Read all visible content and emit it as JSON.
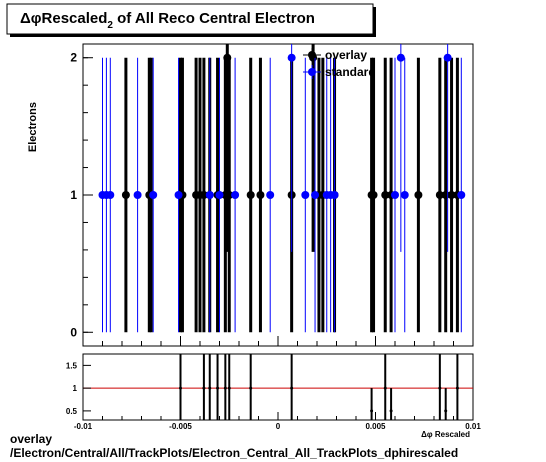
{
  "colors": {
    "overlay": "#000000",
    "standard": "#0000ff",
    "ratio_line": "#cc0000"
  },
  "chart_data": [
    {
      "type": "scatter",
      "title": "Δφ Rescaled₂ of All Reco Central  Electron",
      "title_parts": {
        "pre": "Δφ",
        "main": "Rescaled",
        "sub": "2",
        "post": " of All Reco Central  Electron"
      },
      "ylabel": "Electrons",
      "xlim": [
        -0.01,
        0.01
      ],
      "ylim": [
        -0.1,
        2.1
      ],
      "y_ticks": [
        "0",
        "1",
        "2"
      ],
      "legend_position": "top-right",
      "series": [
        {
          "name": "overlay",
          "color": "#000000",
          "x": [
            -0.0078,
            -0.0066,
            -0.0065,
            -0.005,
            -0.0049,
            -0.0042,
            -0.004,
            -0.0038,
            -0.0035,
            -0.0031,
            -0.0027,
            -0.0026,
            -0.0025,
            -0.0014,
            -0.0009,
            0.0007,
            0.0018,
            0.0021,
            0.0023,
            0.0029,
            0.0048,
            0.0049,
            0.0055,
            0.0058,
            0.0072,
            0.0083,
            0.0086,
            0.0089,
            0.0092
          ],
          "y": [
            1,
            1,
            1,
            1,
            1,
            1,
            1,
            1,
            1,
            1,
            1,
            2,
            1,
            1,
            1,
            1,
            2,
            1,
            1,
            1,
            1,
            1,
            1,
            1,
            1,
            1,
            1,
            1,
            1
          ]
        },
        {
          "name": "standard",
          "color": "#0000ff",
          "x": [
            -0.009,
            -0.0088,
            -0.0086,
            -0.0072,
            -0.0064,
            -0.0051,
            -0.0035,
            -0.003,
            -0.0022,
            -0.0004,
            0.0007,
            0.0014,
            0.0019,
            0.0025,
            0.0027,
            0.0029,
            0.006,
            0.0063,
            0.0065,
            0.0087,
            0.0094
          ],
          "y": [
            1,
            1,
            1,
            1,
            1,
            1,
            1,
            1,
            1,
            1,
            2,
            1,
            1,
            1,
            1,
            1,
            1,
            2,
            1,
            2,
            1
          ]
        }
      ]
    },
    {
      "type": "scatter",
      "title": "",
      "xlabel": "Δφ Rescaled",
      "xlim": [
        -0.01,
        0.01
      ],
      "ylim": [
        0.3,
        1.75
      ],
      "x_ticks": [
        "-0.01",
        "-0.005",
        "0",
        "0.005",
        "0.01"
      ],
      "y_ticks": [
        "0.5",
        "1",
        "1.5"
      ],
      "reference_line": 1,
      "series": [
        {
          "name": "",
          "color": "#000000",
          "x": [
            -0.005,
            -0.0038,
            -0.0035,
            -0.0031,
            -0.0027,
            -0.0025,
            -0.0014,
            0.0007,
            0.0048,
            0.0055,
            0.0058,
            0.0083,
            0.0086,
            0.0092
          ],
          "y": [
            1,
            1,
            1,
            1,
            1,
            1,
            1,
            1,
            0.5,
            1,
            0.5,
            1,
            0.5,
            1
          ]
        }
      ]
    }
  ],
  "footer": {
    "line1": "overlay",
    "line2": "/Electron/Central/All/TrackPlots/Electron_Central_All_TrackPlots_dphirescaled"
  }
}
